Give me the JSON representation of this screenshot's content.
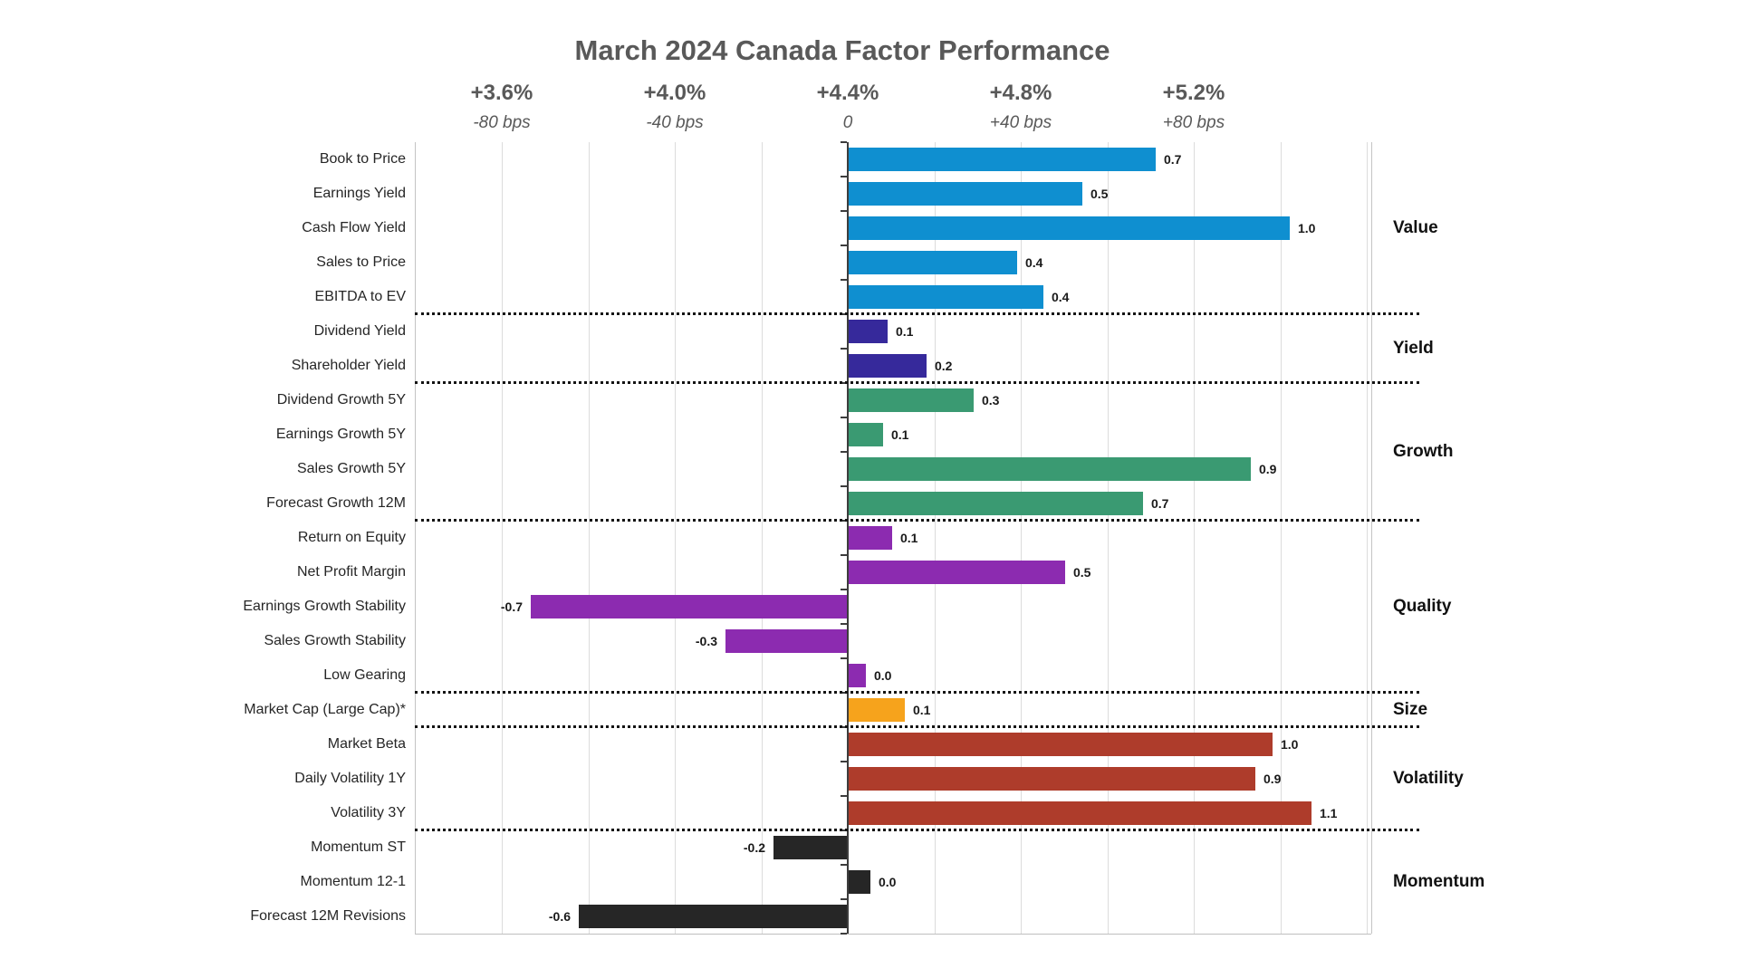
{
  "chart_data": {
    "type": "bar",
    "orientation": "horizontal",
    "title": "March 2024 Canada Factor Performance",
    "x_axis": {
      "ticks": [
        {
          "pct": "+3.6%",
          "bps": "-80 bps",
          "value": -80
        },
        {
          "pct": "+4.0%",
          "bps": "-40 bps",
          "value": -40
        },
        {
          "pct": "+4.4%",
          "bps": "0",
          "value": 0
        },
        {
          "pct": "+4.8%",
          "bps": "+40 bps",
          "value": 40
        },
        {
          "pct": "+5.2%",
          "bps": "+80 bps",
          "value": 80
        }
      ],
      "range_bps": [
        -100,
        121
      ],
      "gridline_step_bps": 20
    },
    "groups": [
      {
        "name": "Value",
        "color": "#0F8FD0",
        "bars": [
          {
            "label": "Book to Price",
            "value": "0.7",
            "bps": 71
          },
          {
            "label": "Earnings Yield",
            "value": "0.5",
            "bps": 54
          },
          {
            "label": "Cash Flow Yield",
            "value": "1.0",
            "bps": 102
          },
          {
            "label": "Sales to Price",
            "value": "0.4",
            "bps": 39
          },
          {
            "label": "EBITDA to EV",
            "value": "0.4",
            "bps": 45
          }
        ]
      },
      {
        "name": "Yield",
        "color": "#36299B",
        "bars": [
          {
            "label": "Dividend Yield",
            "value": "0.1",
            "bps": 9
          },
          {
            "label": "Shareholder Yield",
            "value": "0.2",
            "bps": 18
          }
        ]
      },
      {
        "name": "Growth",
        "color": "#3A9A72",
        "bars": [
          {
            "label": "Dividend Growth 5Y",
            "value": "0.3",
            "bps": 29
          },
          {
            "label": "Earnings Growth 5Y",
            "value": "0.1",
            "bps": 8
          },
          {
            "label": "Sales Growth 5Y",
            "value": "0.9",
            "bps": 93
          },
          {
            "label": "Forecast Growth 12M",
            "value": "0.7",
            "bps": 68
          }
        ]
      },
      {
        "name": "Quality",
        "color": "#8C2BB0",
        "bars": [
          {
            "label": "Return on Equity",
            "value": "0.1",
            "bps": 10
          },
          {
            "label": "Net Profit Margin",
            "value": "0.5",
            "bps": 50
          },
          {
            "label": "Earnings Growth Stability",
            "value": "-0.7",
            "bps": -73
          },
          {
            "label": "Sales Growth Stability",
            "value": "-0.3",
            "bps": -28
          },
          {
            "label": "Low Gearing",
            "value": "0.0",
            "bps": 4
          }
        ]
      },
      {
        "name": "Size",
        "color": "#F6A31C",
        "bars": [
          {
            "label": "Market Cap (Large Cap)*",
            "value": "0.1",
            "bps": 13
          }
        ]
      },
      {
        "name": "Volatility",
        "color": "#AE3C2B",
        "bars": [
          {
            "label": "Market Beta",
            "value": "1.0",
            "bps": 98
          },
          {
            "label": "Daily Volatility 1Y",
            "value": "0.9",
            "bps": 94
          },
          {
            "label": "Volatility 3Y",
            "value": "1.1",
            "bps": 107
          }
        ]
      },
      {
        "name": "Momentum",
        "color": "#262626",
        "bars": [
          {
            "label": "Momentum ST",
            "value": "-0.2",
            "bps": -17
          },
          {
            "label": "Momentum 12-1",
            "value": "0.0",
            "bps": 5
          },
          {
            "label": "Forecast 12M Revisions",
            "value": "-0.6",
            "bps": -62
          }
        ]
      }
    ]
  }
}
